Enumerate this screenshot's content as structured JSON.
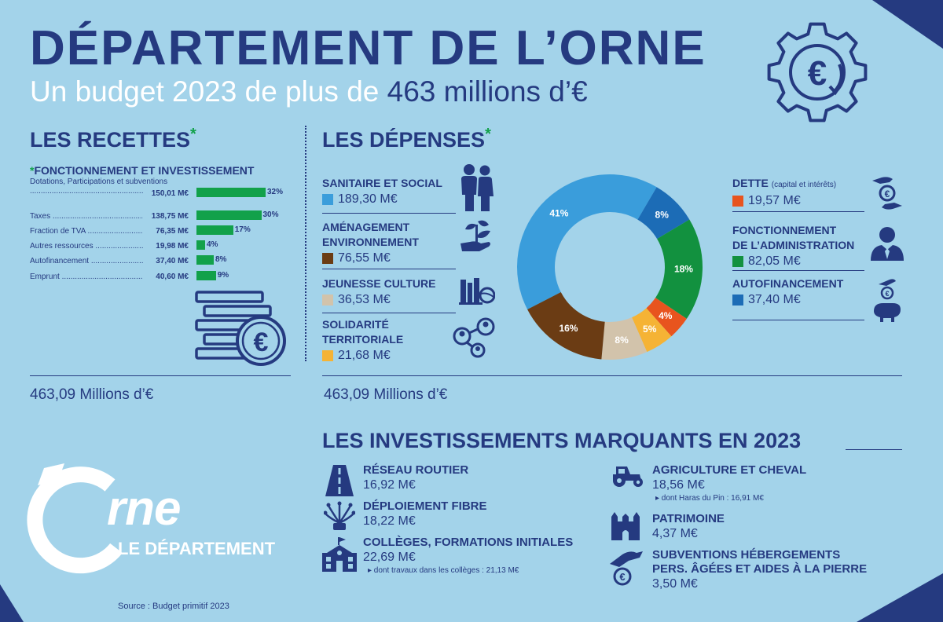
{
  "header": {
    "title": "DÉPARTEMENT DE L’ORNE",
    "subtitle_before": "Un budget 2023 de plus de ",
    "subtitle_highlight": "463 millions d’€"
  },
  "recettes": {
    "heading": "LES RECETTES",
    "star": "*",
    "note_star": "*",
    "note": "FONCTIONNEMENT ET INVESTISSEMENT",
    "total": "463,09 Millions d’€"
  },
  "depenses": {
    "heading": "LES DÉPENSES",
    "star": "*",
    "total": "463,09 Millions d’€"
  },
  "chart_data": [
    {
      "type": "bar",
      "orientation": "horizontal",
      "categories": [
        "Dotations, Participations et subventions",
        "Taxes",
        "Fraction de TVA",
        "Autres ressources",
        "Autofinancement",
        "Emprunt"
      ],
      "amounts": [
        "150,01 M€",
        "138,75 M€",
        "76,35 M€",
        "19,98 M€",
        "37,40 M€",
        "40,60 M€"
      ],
      "values": [
        32,
        30,
        17,
        4,
        8,
        9
      ],
      "value_labels": [
        "32%",
        "30%",
        "17%",
        "4%",
        "8%",
        "9%"
      ],
      "color": "#12a14a"
    },
    {
      "type": "pie",
      "style": "donut",
      "slices": [
        {
          "name": "SANITAIRE ET SOCIAL",
          "amount": "189,30 M€",
          "value": 41,
          "label": "41%",
          "color": "#3a9ddb"
        },
        {
          "name": "AUTOFINANCEMENT",
          "amount": "37,40 M€",
          "value": 8,
          "label": "8%",
          "color": "#1c6cb6"
        },
        {
          "name": "FONCTIONNEMENT DE L’ADMINISTRATION",
          "amount": "82,05 M€",
          "value": 18,
          "label": "18%",
          "color": "#12913f"
        },
        {
          "name": "DETTE",
          "amount": "19,57 M€",
          "value": 4,
          "label": "4%",
          "color": "#e8541e"
        },
        {
          "name": "SOLIDARITÉ TERRITORIALE",
          "amount": "21,68 M€",
          "value": 5,
          "label": "5%",
          "color": "#f5b335"
        },
        {
          "name": "JEUNESSE CULTURE",
          "amount": "36,53 M€",
          "value": 8,
          "label": "8%",
          "color": "#d2c3ab"
        },
        {
          "name": "AMÉNAGEMENT ENVIRONNEMENT",
          "amount": "76,55 M€",
          "value": 16,
          "label": "16%",
          "color": "#6b3c14"
        }
      ]
    }
  ],
  "depenses_left": [
    {
      "label1": "SANITAIRE ET SOCIAL",
      "label2": "",
      "amount": "189,30 M€",
      "color": "#3a9ddb"
    },
    {
      "label1": "AMÉNAGEMENT",
      "label2": "ENVIRONNEMENT",
      "amount": "76,55 M€",
      "color": "#6b3c14"
    },
    {
      "label1": "JEUNESSE CULTURE",
      "label2": "",
      "amount": "36,53 M€",
      "color": "#d2c3ab"
    },
    {
      "label1": "SOLIDARITÉ",
      "label2": "TERRITORIALE",
      "amount": "21,68 M€",
      "color": "#f5b335"
    }
  ],
  "depenses_right": [
    {
      "label1": "DETTE",
      "small": "(capital et intérêts)",
      "label2": "",
      "amount": "19,57 M€",
      "color": "#e8541e"
    },
    {
      "label1": "FONCTIONNEMENT",
      "small": "",
      "label2": "DE L’ADMINISTRATION",
      "amount": "82,05 M€",
      "color": "#12913f"
    },
    {
      "label1": "AUTOFINANCEMENT",
      "small": "",
      "label2": "",
      "amount": "37,40 M€",
      "color": "#1c6cb6"
    }
  ],
  "investissements": {
    "heading": "LES INVESTISSEMENTS MARQUANTS EN 2023",
    "left": [
      {
        "title": "RÉSEAU ROUTIER",
        "amount": "16,92 M€",
        "note": "",
        "icon": "road-icon"
      },
      {
        "title": "DÉPLOIEMENT FIBRE",
        "amount": "18,22 M€",
        "note": "",
        "icon": "fiber-icon"
      },
      {
        "title": "COLLÈGES, FORMATIONS INITIALES",
        "amount": "22,69 M€",
        "note": "▸ dont travaux dans les collèges : 21,13 M€",
        "icon": "school-icon"
      }
    ],
    "right": [
      {
        "title": "AGRICULTURE ET CHEVAL",
        "title2": "",
        "amount": "18,56 M€",
        "note": "▸ dont Haras du Pin : 16,91 M€",
        "icon": "tractor-icon"
      },
      {
        "title": "PATRIMOINE",
        "title2": "",
        "amount": "4,37 M€",
        "note": "",
        "icon": "castle-icon"
      },
      {
        "title": "SUBVENTIONS HÉBERGEMENTS",
        "title2": "PERS. ÂGÉES ET AIDES À LA PIERRE",
        "amount": "3,50 M€",
        "note": "",
        "icon": "hand-coin-icon"
      }
    ]
  },
  "logo": {
    "word": "rne",
    "subtitle": "LE DÉPARTEMENT"
  },
  "source": "Source : Budget primitif 2023"
}
